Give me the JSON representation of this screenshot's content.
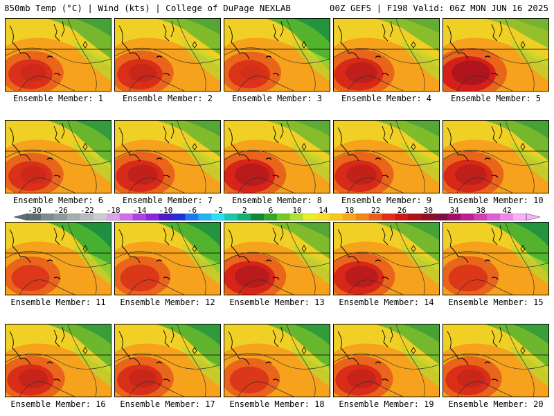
{
  "header": {
    "left": "850mb Temp (°C) | Wind (kts) | College of DuPage NEXLAB",
    "right": "00Z GEFS | F198 Valid: 06Z MON JUN 16 2025"
  },
  "colorbar": {
    "tick_labels": [
      "-30",
      "-26",
      "-22",
      "-18",
      "-14",
      "-10",
      "-6",
      "-2",
      "2",
      "6",
      "10",
      "14",
      "18",
      "22",
      "26",
      "30",
      "34",
      "38",
      "42"
    ],
    "colors": [
      "#5e6e6e",
      "#7f8c8c",
      "#8f9a9a",
      "#a5adad",
      "#b6bdbd",
      "#c7cccc",
      "#d8a4e8",
      "#d070e8",
      "#b040e0",
      "#8c28d8",
      "#5018c0",
      "#2030d8",
      "#1e78f0",
      "#20b4f0",
      "#28e0f0",
      "#18c8a8",
      "#10b070",
      "#108838",
      "#38a828",
      "#78c828",
      "#b0e030",
      "#e8f028",
      "#f8e020",
      "#f8c818",
      "#f8a818",
      "#f08818",
      "#e86018",
      "#e03018",
      "#d01818",
      "#b01018",
      "#901020",
      "#801040",
      "#a01060",
      "#c02090",
      "#d040b0",
      "#e060d0",
      "#f088e8",
      "#f8b0f8"
    ]
  },
  "members": [
    {
      "label": "Ensemble Member: 1",
      "hot": 0.55,
      "cool": 0.55
    },
    {
      "label": "Ensemble Member: 2",
      "hot": 0.6,
      "cool": 0.45
    },
    {
      "label": "Ensemble Member: 3",
      "hot": 0.45,
      "cool": 0.9
    },
    {
      "label": "Ensemble Member: 4",
      "hot": 0.75,
      "cool": 0.35
    },
    {
      "label": "Ensemble Member: 5",
      "hot": 1.0,
      "cool": 0.25
    },
    {
      "label": "Ensemble Member: 6",
      "hot": 0.55,
      "cool": 0.7
    },
    {
      "label": "Ensemble Member: 7",
      "hot": 0.7,
      "cool": 0.45
    },
    {
      "label": "Ensemble Member: 8",
      "hot": 0.85,
      "cool": 0.4
    },
    {
      "label": "Ensemble Member: 9",
      "hot": 0.7,
      "cool": 0.45
    },
    {
      "label": "Ensemble Member: 10",
      "hot": 0.75,
      "cool": 0.55
    },
    {
      "label": "Ensemble Member: 11",
      "hot": 0.3,
      "cool": 1.0
    },
    {
      "label": "Ensemble Member: 12",
      "hot": 0.35,
      "cool": 0.9
    },
    {
      "label": "Ensemble Member: 13",
      "hot": 0.85,
      "cool": 0.45
    },
    {
      "label": "Ensemble Member: 14",
      "hot": 0.8,
      "cool": 0.55
    },
    {
      "label": "Ensemble Member: 15",
      "hot": 0.35,
      "cool": 0.9
    },
    {
      "label": "Ensemble Member: 16",
      "hot": 0.65,
      "cool": 0.65
    },
    {
      "label": "Ensemble Member: 17",
      "hot": 0.6,
      "cool": 0.75
    },
    {
      "label": "Ensemble Member: 18",
      "hot": 0.35,
      "cool": 0.7
    },
    {
      "label": "Ensemble Member: 19",
      "hot": 0.65,
      "cool": 0.55
    },
    {
      "label": "Ensemble Member: 20",
      "hot": 0.6,
      "cool": 0.65
    }
  ]
}
